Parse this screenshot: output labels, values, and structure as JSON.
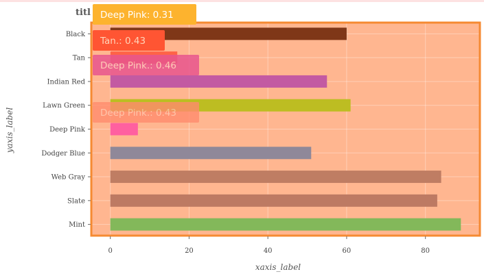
{
  "chart_data": {
    "type": "bar",
    "orientation": "horizontal",
    "title": "titl",
    "xlabel": "xaxis_label",
    "ylabel": "yaxis_label",
    "xlim": [
      -5,
      94
    ],
    "xticks": [
      0,
      20,
      40,
      60,
      80
    ],
    "grid": true,
    "categories": [
      "Black",
      "Tan",
      "Indian Red",
      "Lawn Green",
      "Deep Pink",
      "Dodger Blue",
      "Web Gray",
      "Slate",
      "Mint"
    ],
    "values": [
      60,
      17,
      55,
      61,
      7,
      51,
      84,
      83,
      89
    ],
    "colors": [
      "#7f3718",
      "#ff6347",
      "#c35aa2",
      "#bdbd22",
      "#ff60a0",
      "#8f8899",
      "#bf7d63",
      "#bd7a63",
      "#83b85a"
    ],
    "plot_background": "#ffb690",
    "annotations": [
      {
        "text": "Deep Pink: 0.31",
        "bg": "#fdb32e",
        "fg": "#ffffff",
        "opacity": 1
      },
      {
        "text": "Tan.: 0.43",
        "bg": "#ff5533",
        "fg": "#ffd4b8",
        "opacity": 1
      },
      {
        "text": "Deep Pink.: 0.46",
        "bg": "#e8558e",
        "fg": "#ffd0bd",
        "opacity": 0.85
      },
      {
        "text": "Deep Pink.: 0.43",
        "bg": "#ff8c6e",
        "fg": "#ffc9b2",
        "opacity": 0.8
      }
    ]
  }
}
